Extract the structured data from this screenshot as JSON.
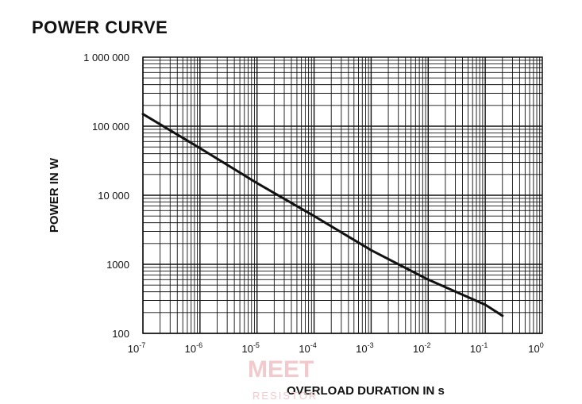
{
  "page": {
    "title": "POWER CURVE",
    "watermark_top": "MEET",
    "watermark_bottom": "RESISTOR"
  },
  "chart_data": {
    "type": "line",
    "title": "POWER CURVE",
    "xlabel": "OVERLOAD DURATION IN s",
    "ylabel": "POWER IN W",
    "x_scale": "log",
    "y_scale": "log",
    "xlim": [
      1e-07,
      1
    ],
    "ylim": [
      100,
      1000000
    ],
    "grid": true,
    "x_ticks": [
      {
        "value": 1e-07,
        "base": "10",
        "exp": "-7"
      },
      {
        "value": 1e-06,
        "base": "10",
        "exp": "-6"
      },
      {
        "value": 1e-05,
        "base": "10",
        "exp": "-5"
      },
      {
        "value": 0.0001,
        "base": "10",
        "exp": "-4"
      },
      {
        "value": 0.001,
        "base": "10",
        "exp": "-3"
      },
      {
        "value": 0.01,
        "base": "10",
        "exp": "-2"
      },
      {
        "value": 0.1,
        "base": "10",
        "exp": "-1"
      },
      {
        "value": 1,
        "base": "10",
        "exp": "0"
      }
    ],
    "y_ticks": [
      {
        "value": 100,
        "label": "100"
      },
      {
        "value": 1000,
        "label": "1000"
      },
      {
        "value": 10000,
        "label": "10 000"
      },
      {
        "value": 100000,
        "label": "100 000"
      },
      {
        "value": 1000000,
        "label": "1 000 000"
      }
    ],
    "series": [
      {
        "color": "#111111",
        "x": [
          1e-07,
          1e-06,
          1e-05,
          0.0001,
          0.001,
          0.01,
          0.1,
          0.2
        ],
        "y": [
          150000,
          48000,
          15000,
          5000,
          1600,
          600,
          260,
          180
        ]
      }
    ]
  }
}
